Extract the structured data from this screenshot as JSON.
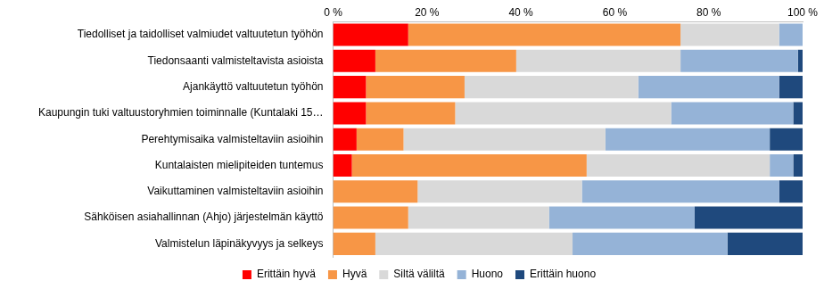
{
  "chart_data": {
    "type": "bar",
    "orientation": "horizontal",
    "stacked": true,
    "grid": false,
    "legend": "bottom",
    "categories": [
      "Tiedolliset ja taidolliset valmiudet valtuutetun työhön",
      "Tiedonsaanti valmisteltavista asioista",
      "Ajankäyttö valtuutetun työhön",
      "Kaupungin tuki valtuustoryhmien toiminnalle (Kuntalaki 15…",
      "Perehtymisaika valmisteltaviin asioihin",
      "Kuntalaisten mielipiteiden tuntemus",
      "Vaikuttaminen valmisteltaviin asioihin",
      "Sähköisen asiahallinnan (Ahjo) järjestelmän käyttö",
      "Valmistelun läpinäkyvyys ja selkeys"
    ],
    "series": [
      {
        "name": "Erittäin hyvä",
        "color": "#ff0000",
        "values": [
          16,
          9,
          7,
          7,
          5,
          4,
          0,
          0,
          0
        ]
      },
      {
        "name": "Hyvä",
        "color": "#f79646",
        "values": [
          58,
          30,
          21,
          19,
          10,
          50,
          18,
          16,
          9
        ]
      },
      {
        "name": "Siltä väliltä",
        "color": "#d9d9d9",
        "values": [
          21,
          35,
          37,
          46,
          43,
          39,
          35,
          30,
          42
        ]
      },
      {
        "name": "Huono",
        "color": "#95b3d7",
        "values": [
          5,
          25,
          30,
          26,
          35,
          5,
          42,
          31,
          33
        ]
      },
      {
        "name": "Erittäin huono",
        "color": "#1f497d",
        "values": [
          0,
          1,
          5,
          2,
          7,
          2,
          5,
          23,
          16
        ]
      }
    ],
    "xlim": [
      0,
      100
    ],
    "xticks": [
      {
        "value": 0,
        "label": "0 %"
      },
      {
        "value": 20,
        "label": "20 %"
      },
      {
        "value": 40,
        "label": "40 %"
      },
      {
        "value": 60,
        "label": "60 %"
      },
      {
        "value": 80,
        "label": "80 %"
      },
      {
        "value": 100,
        "label": "100 %"
      }
    ]
  }
}
